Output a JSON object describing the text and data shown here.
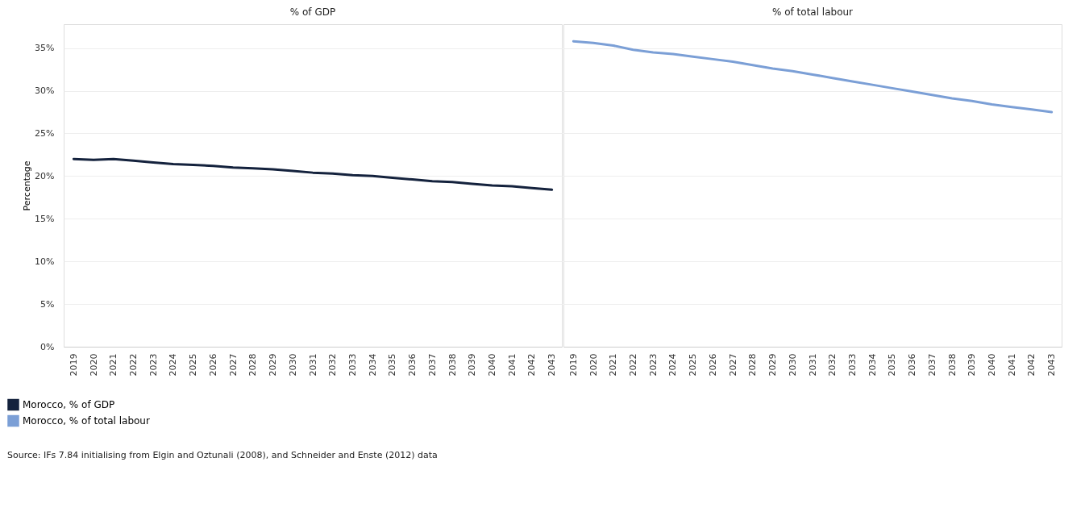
{
  "chart_data": [
    {
      "type": "line",
      "title": "% of GDP",
      "ylabel": "Percentage",
      "categories": [
        "2019",
        "2020",
        "2021",
        "2022",
        "2023",
        "2024",
        "2025",
        "2026",
        "2027",
        "2028",
        "2029",
        "2030",
        "2031",
        "2032",
        "2033",
        "2034",
        "2035",
        "2036",
        "2037",
        "2038",
        "2039",
        "2040",
        "2041",
        "2042",
        "2043"
      ],
      "series": [
        {
          "name": "Morocco, % of GDP",
          "color": "#14223d",
          "values": [
            22.0,
            21.9,
            22.0,
            21.8,
            21.6,
            21.4,
            21.3,
            21.2,
            21.0,
            20.9,
            20.8,
            20.6,
            20.4,
            20.3,
            20.1,
            20.0,
            19.8,
            19.6,
            19.4,
            19.3,
            19.1,
            18.9,
            18.8,
            18.6,
            18.4
          ]
        }
      ],
      "ylim": [
        0,
        37.8
      ],
      "yticks": [
        {
          "value": 0,
          "label": "0%"
        },
        {
          "value": 5,
          "label": "5%"
        },
        {
          "value": 10,
          "label": "10%"
        },
        {
          "value": 15,
          "label": "15%"
        },
        {
          "value": 20,
          "label": "20%"
        },
        {
          "value": 25,
          "label": "25%"
        },
        {
          "value": 30,
          "label": "30%"
        },
        {
          "value": 35,
          "label": "35%"
        }
      ],
      "grid": "y",
      "legend": "bottom left",
      "marker": "none",
      "line_style": "solid",
      "annotations": [
        "Source: IFs 7.84 initialising from Elgin and Oztunali (2008), and Schneider and Enste (2012) data"
      ]
    },
    {
      "type": "line",
      "title": "% of total labour",
      "categories": [
        "2019",
        "2020",
        "2021",
        "2022",
        "2023",
        "2024",
        "2025",
        "2026",
        "2027",
        "2028",
        "2029",
        "2030",
        "2031",
        "2032",
        "2033",
        "2034",
        "2035",
        "2036",
        "2037",
        "2038",
        "2039",
        "2040",
        "2041",
        "2042",
        "2043"
      ],
      "series": [
        {
          "name": "Morocco, % of total labour",
          "color": "#7b9fd6",
          "values": [
            35.8,
            35.6,
            35.3,
            34.8,
            34.5,
            34.3,
            34.0,
            33.7,
            33.4,
            33.0,
            32.6,
            32.3,
            31.9,
            31.5,
            31.1,
            30.7,
            30.3,
            29.9,
            29.5,
            29.1,
            28.8,
            28.4,
            28.1,
            27.8,
            27.5
          ]
        }
      ],
      "ylim": [
        0,
        37.8
      ],
      "yticks": [
        {
          "value": 0,
          "label": null
        },
        {
          "value": 5,
          "label": null
        },
        {
          "value": 10,
          "label": null
        },
        {
          "value": 15,
          "label": null
        },
        {
          "value": 20,
          "label": null
        },
        {
          "value": 25,
          "label": null
        },
        {
          "value": 30,
          "label": null
        },
        {
          "value": 35,
          "label": null
        }
      ],
      "grid": "y",
      "tick_labels": "x",
      "marker": "none",
      "line_style": "solid"
    }
  ]
}
